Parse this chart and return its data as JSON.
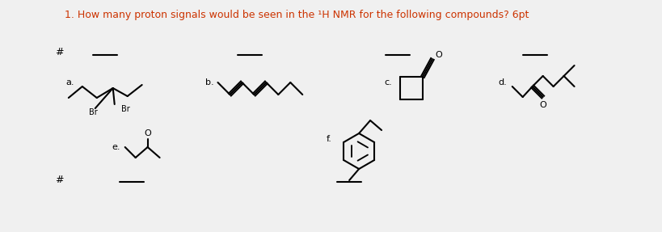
{
  "title": "1. How many proton signals would be seen in the ¹H NMR for the following compounds? 6pt",
  "title_color": "#cc3300",
  "bg_color": "#f0f0f0",
  "text_color": "#000000",
  "line_color": "#000000",
  "labels": [
    "a.",
    "b.",
    "c.",
    "d.",
    "e.",
    "f."
  ],
  "hash_symbol": "#"
}
